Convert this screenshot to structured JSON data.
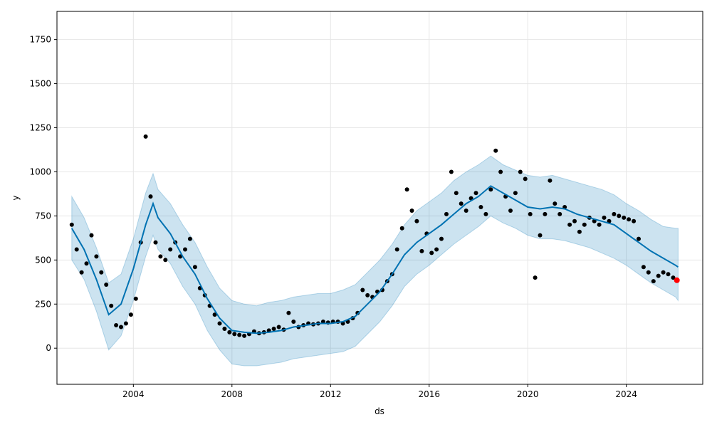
{
  "chart_data": {
    "type": "scatter",
    "title": "",
    "xlabel": "ds",
    "ylabel": "y",
    "xlim": [
      2000.9,
      2027.1
    ],
    "ylim": [
      -205,
      1910
    ],
    "grid": true,
    "x_ticks": [
      2004,
      2008,
      2012,
      2016,
      2020,
      2024
    ],
    "y_ticks": [
      0,
      250,
      500,
      750,
      1000,
      1250,
      1500,
      1750
    ],
    "colors": {
      "observed": "#000000",
      "forecast_line": "#0072B2",
      "uncertainty_band": "#0072B2",
      "latest_point": "#FF0000",
      "grid": "#e6e6e6"
    },
    "series": [
      {
        "role": "observed",
        "x": [
          2001.5,
          2001.7,
          2001.9,
          2002.1,
          2002.3,
          2002.5,
          2002.7,
          2002.9,
          2003.1,
          2003.3,
          2003.5,
          2003.7,
          2003.9,
          2004.1,
          2004.3,
          2004.5,
          2004.7,
          2004.9,
          2005.1,
          2005.3,
          2005.5,
          2005.7,
          2005.9,
          2006.1,
          2006.3,
          2006.5,
          2006.7,
          2006.9,
          2007.1,
          2007.3,
          2007.5,
          2007.7,
          2007.9,
          2008.1,
          2008.3,
          2008.5,
          2008.7,
          2008.9,
          2009.1,
          2009.3,
          2009.5,
          2009.7,
          2009.9,
          2010.1,
          2010.3,
          2010.5,
          2010.7,
          2010.9,
          2011.1,
          2011.3,
          2011.5,
          2011.7,
          2011.9,
          2012.1,
          2012.3,
          2012.5,
          2012.7,
          2012.9,
          2013.1,
          2013.3,
          2013.5,
          2013.7,
          2013.9,
          2014.1,
          2014.3,
          2014.5,
          2014.7,
          2014.9,
          2015.1,
          2015.3,
          2015.5,
          2015.7,
          2015.9,
          2016.1,
          2016.3,
          2016.5,
          2016.7,
          2016.9,
          2017.1,
          2017.3,
          2017.5,
          2017.7,
          2017.9,
          2018.1,
          2018.3,
          2018.5,
          2018.7,
          2018.9,
          2019.1,
          2019.3,
          2019.5,
          2019.7,
          2019.9,
          2020.1,
          2020.3,
          2020.5,
          2020.7,
          2020.9,
          2021.1,
          2021.3,
          2021.5,
          2021.7,
          2021.9,
          2022.1,
          2022.3,
          2022.5,
          2022.7,
          2022.9,
          2023.1,
          2023.3,
          2023.5,
          2023.7,
          2023.9,
          2024.1,
          2024.3,
          2024.5,
          2024.7,
          2024.9,
          2025.1,
          2025.3,
          2025.5,
          2025.7,
          2025.9
        ],
        "y": [
          700,
          560,
          430,
          480,
          640,
          520,
          430,
          360,
          240,
          130,
          120,
          140,
          190,
          280,
          600,
          1200,
          860,
          600,
          520,
          500,
          560,
          600,
          520,
          560,
          620,
          460,
          340,
          300,
          240,
          190,
          140,
          110,
          90,
          80,
          75,
          70,
          80,
          95,
          85,
          90,
          100,
          110,
          120,
          105,
          200,
          150,
          120,
          130,
          140,
          135,
          140,
          150,
          145,
          150,
          150,
          140,
          150,
          170,
          200,
          330,
          300,
          290,
          320,
          330,
          380,
          420,
          560,
          680,
          900,
          780,
          720,
          550,
          650,
          540,
          560,
          620,
          760,
          1000,
          880,
          820,
          780,
          850,
          880,
          800,
          760,
          900,
          1120,
          1000,
          860,
          780,
          880,
          1000,
          960,
          760,
          400,
          640,
          760,
          950,
          820,
          760,
          800,
          700,
          720,
          660,
          700,
          740,
          720,
          700,
          740,
          720,
          760,
          750,
          740,
          730,
          720,
          620,
          460,
          430,
          380,
          410,
          430,
          420,
          400
        ]
      },
      {
        "role": "forecast",
        "x": [
          2001.5,
          2002.0,
          2002.5,
          2003.0,
          2003.5,
          2004.0,
          2004.5,
          2004.8,
          2005.0,
          2005.5,
          2006.0,
          2006.5,
          2007.0,
          2007.5,
          2008.0,
          2008.5,
          2009.0,
          2009.5,
          2010.0,
          2010.5,
          2011.0,
          2011.5,
          2012.0,
          2012.5,
          2013.0,
          2013.5,
          2014.0,
          2014.5,
          2015.0,
          2015.5,
          2016.0,
          2016.5,
          2017.0,
          2017.5,
          2018.0,
          2018.5,
          2019.0,
          2019.5,
          2020.0,
          2020.5,
          2021.0,
          2021.5,
          2022.0,
          2022.5,
          2023.0,
          2023.5,
          2024.0,
          2024.5,
          2025.0,
          2025.5,
          2026.0,
          2026.1
        ],
        "y": [
          680,
          560,
          390,
          190,
          250,
          450,
          700,
          820,
          740,
          650,
          520,
          420,
          280,
          170,
          100,
          90,
          85,
          90,
          100,
          120,
          130,
          140,
          140,
          150,
          180,
          250,
          320,
          420,
          530,
          600,
          650,
          700,
          760,
          820,
          860,
          920,
          880,
          840,
          800,
          790,
          800,
          790,
          760,
          740,
          720,
          700,
          650,
          600,
          550,
          510,
          470,
          460
        ]
      },
      {
        "role": "uncertainty_upper",
        "x": [
          2001.5,
          2002.0,
          2002.5,
          2003.0,
          2003.5,
          2004.0,
          2004.5,
          2004.8,
          2005.0,
          2005.5,
          2006.0,
          2006.5,
          2007.0,
          2007.5,
          2008.0,
          2008.5,
          2009.0,
          2009.5,
          2010.0,
          2010.5,
          2011.0,
          2011.5,
          2012.0,
          2012.5,
          2013.0,
          2013.5,
          2014.0,
          2014.5,
          2015.0,
          2015.5,
          2016.0,
          2016.5,
          2017.0,
          2017.5,
          2018.0,
          2018.5,
          2019.0,
          2019.5,
          2020.0,
          2020.5,
          2021.0,
          2021.5,
          2022.0,
          2022.5,
          2023.0,
          2023.5,
          2024.0,
          2024.5,
          2025.0,
          2025.5,
          2026.0,
          2026.1
        ],
        "y": [
          860,
          740,
          570,
          370,
          420,
          620,
          880,
          990,
          900,
          820,
          700,
          600,
          460,
          340,
          270,
          250,
          240,
          260,
          270,
          290,
          300,
          310,
          310,
          330,
          360,
          430,
          500,
          590,
          700,
          780,
          830,
          880,
          950,
          1000,
          1040,
          1090,
          1040,
          1010,
          980,
          970,
          980,
          960,
          940,
          920,
          900,
          870,
          820,
          780,
          730,
          690,
          680,
          680
        ]
      },
      {
        "role": "uncertainty_lower",
        "x": [
          2001.5,
          2002.0,
          2002.5,
          2003.0,
          2003.5,
          2004.0,
          2004.5,
          2004.8,
          2005.0,
          2005.5,
          2006.0,
          2006.5,
          2007.0,
          2007.5,
          2008.0,
          2008.5,
          2009.0,
          2009.5,
          2010.0,
          2010.5,
          2011.0,
          2011.5,
          2012.0,
          2012.5,
          2013.0,
          2013.5,
          2014.0,
          2014.5,
          2015.0,
          2015.5,
          2016.0,
          2016.5,
          2017.0,
          2017.5,
          2018.0,
          2018.5,
          2019.0,
          2019.5,
          2020.0,
          2020.5,
          2021.0,
          2021.5,
          2022.0,
          2022.5,
          2023.0,
          2023.5,
          2024.0,
          2024.5,
          2025.0,
          2025.5,
          2026.0,
          2026.1
        ],
        "y": [
          500,
          390,
          210,
          -10,
          70,
          270,
          520,
          640,
          560,
          480,
          350,
          250,
          100,
          -10,
          -90,
          -100,
          -100,
          -90,
          -80,
          -60,
          -50,
          -40,
          -30,
          -20,
          10,
          80,
          150,
          240,
          350,
          420,
          470,
          530,
          590,
          640,
          690,
          750,
          710,
          680,
          640,
          620,
          620,
          610,
          590,
          570,
          540,
          510,
          470,
          420,
          370,
          330,
          290,
          270
        ]
      },
      {
        "role": "latest",
        "x": [
          2026.05
        ],
        "y": [
          385
        ]
      }
    ]
  }
}
